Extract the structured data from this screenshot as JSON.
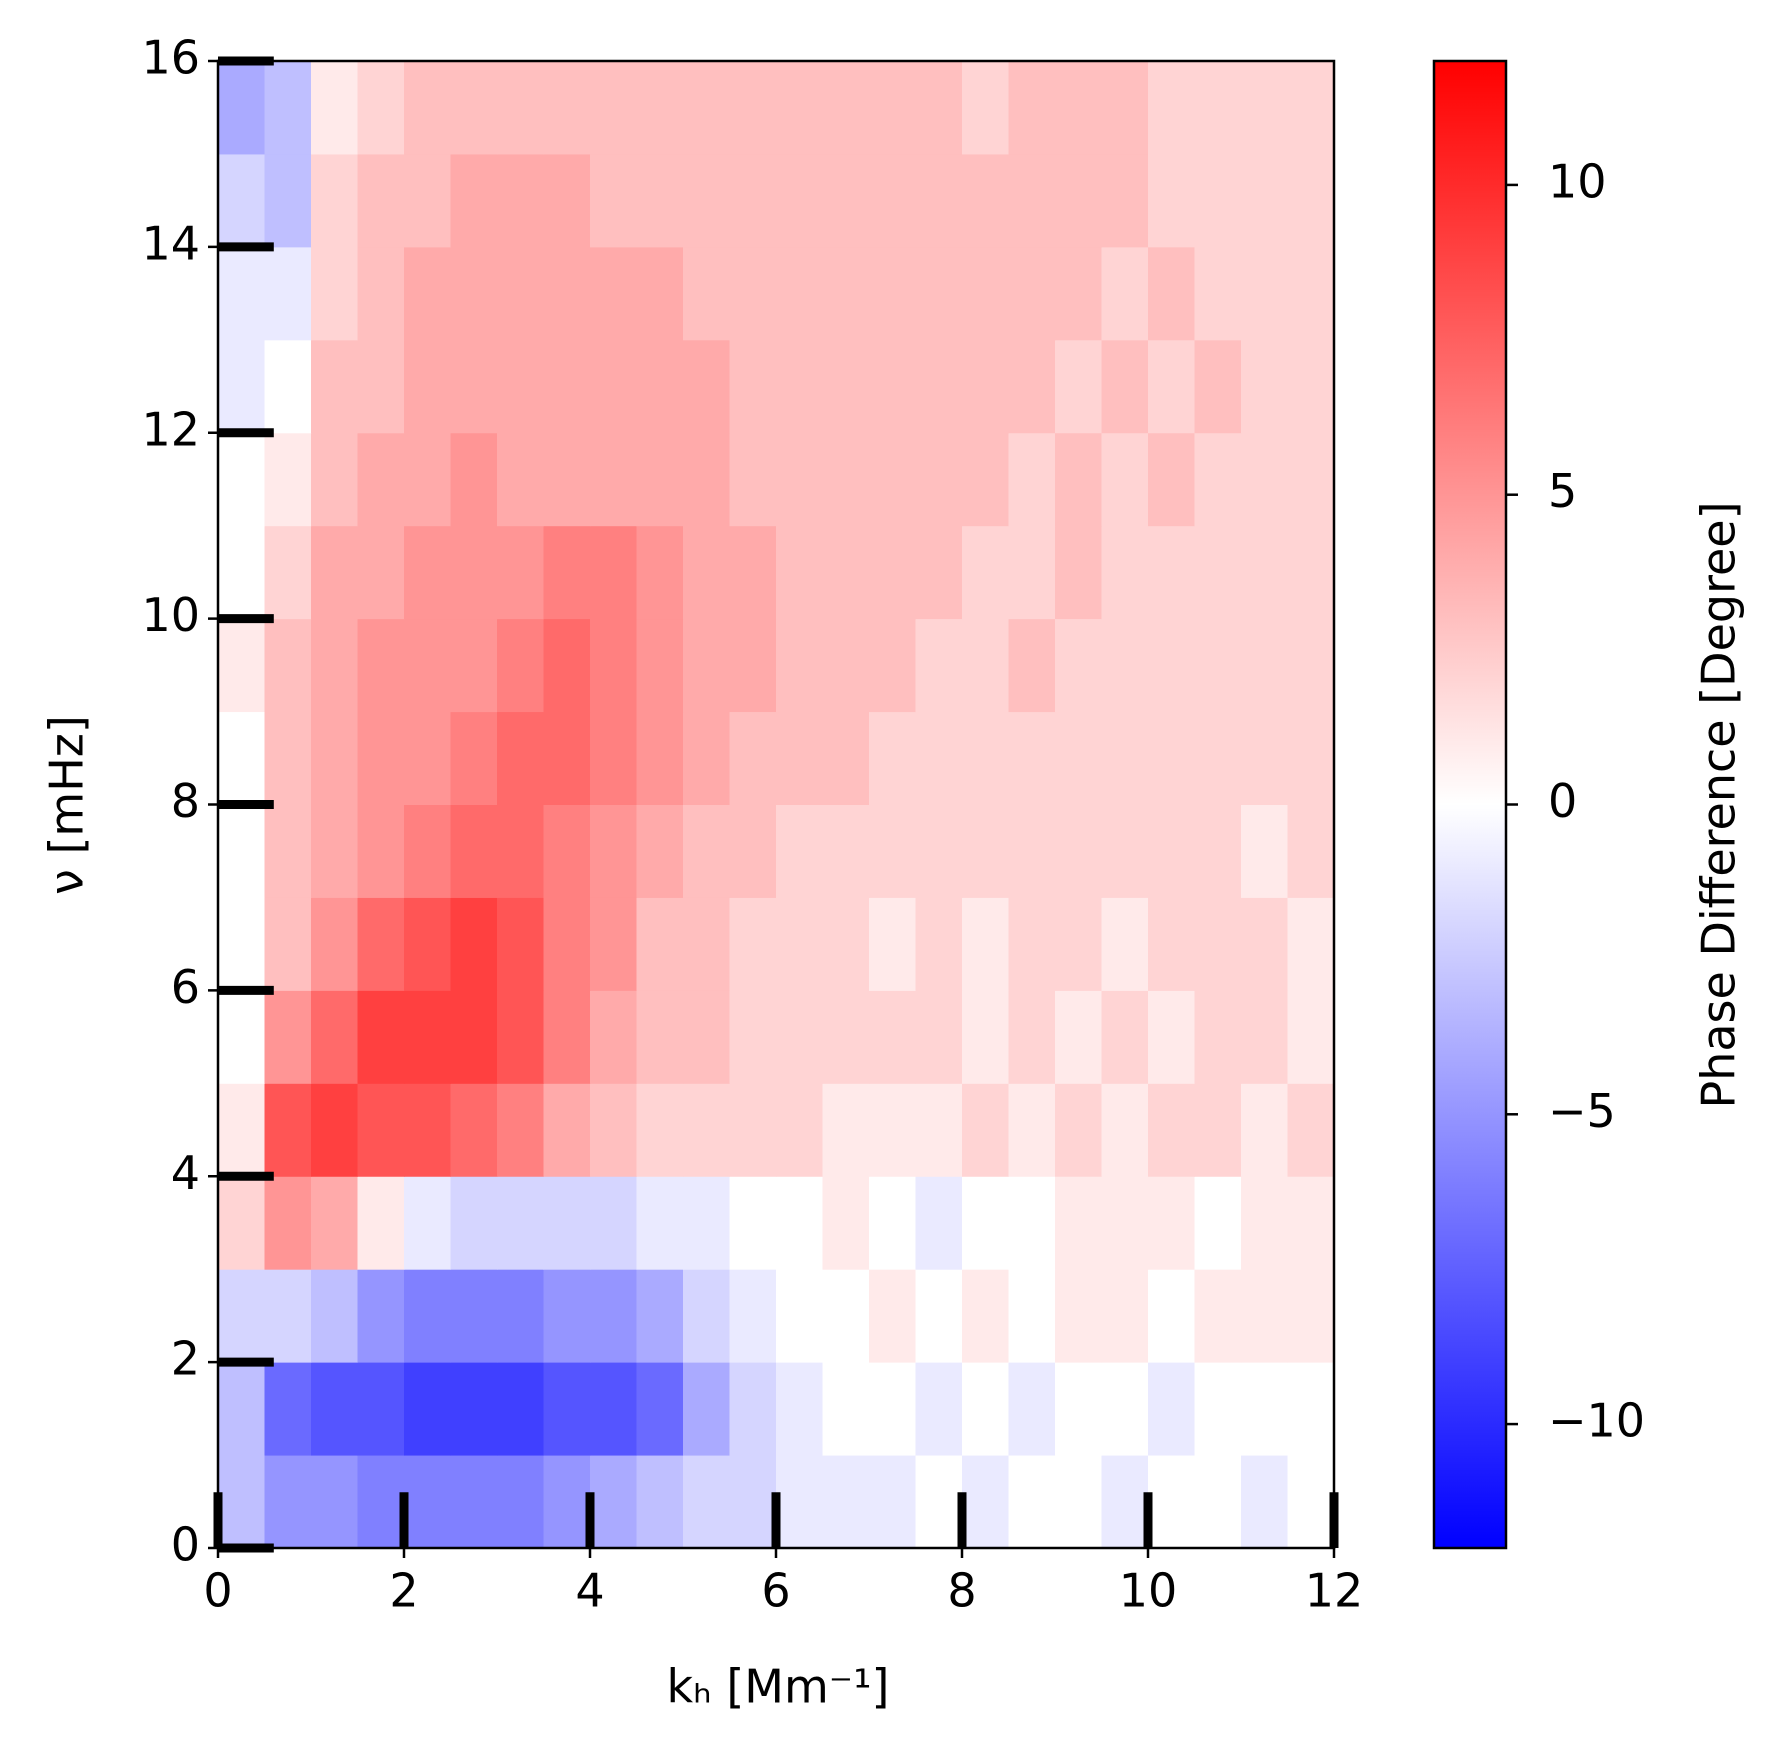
{
  "chart_data": {
    "type": "heatmap",
    "xlabel": "kₕ  [Mm⁻¹]",
    "ylabel": "ν  [mHz]",
    "colorbar_label": "Phase Difference [Degree]",
    "xlim": [
      0,
      12
    ],
    "ylim": [
      0,
      16
    ],
    "xticks": [
      0,
      2,
      4,
      6,
      8,
      10,
      12
    ],
    "yticks": [
      0,
      2,
      4,
      6,
      8,
      10,
      12,
      14,
      16
    ],
    "xbins": [
      0,
      0.5,
      1,
      1.5,
      2,
      2.5,
      3,
      3.5,
      4,
      4.5,
      5,
      5.5,
      6,
      6.5,
      7,
      7.5,
      8,
      8.5,
      9,
      9.5,
      10,
      10.5,
      11,
      11.5,
      12
    ],
    "ybins": [
      0,
      1,
      2,
      3,
      4,
      5,
      6,
      7,
      8,
      9,
      10,
      11,
      12,
      13,
      14,
      15,
      16
    ],
    "z": [
      [
        -3,
        -5,
        -5,
        -6,
        -6,
        -6,
        -6,
        -5,
        -4,
        -3,
        -2,
        -2,
        -1,
        -1,
        -1,
        0,
        -1,
        0,
        0,
        -1,
        0,
        0,
        -1,
        0
      ],
      [
        -3,
        -7,
        -8,
        -8,
        -9,
        -9,
        -9,
        -8,
        -8,
        -7,
        -4,
        -2,
        -1,
        0,
        0,
        -1,
        0,
        -1,
        0,
        0,
        -1,
        0,
        0,
        0
      ],
      [
        -2,
        -2,
        -3,
        -5,
        -6,
        -6,
        -6,
        -5,
        -5,
        -4,
        -2,
        -1,
        0,
        0,
        1,
        0,
        1,
        0,
        1,
        1,
        0,
        1,
        1,
        1
      ],
      [
        2,
        5,
        4,
        1,
        -1,
        -2,
        -2,
        -2,
        -2,
        -1,
        -1,
        0,
        0,
        1,
        0,
        -1,
        0,
        0,
        1,
        1,
        1,
        0,
        1,
        1
      ],
      [
        1,
        8,
        9,
        8,
        8,
        7,
        6,
        4,
        3,
        2,
        2,
        2,
        2,
        1,
        1,
        1,
        2,
        1,
        2,
        1,
        2,
        2,
        1,
        2
      ],
      [
        0,
        5,
        7,
        9,
        9,
        9,
        8,
        6,
        4,
        3,
        3,
        2,
        2,
        2,
        2,
        2,
        1,
        2,
        1,
        2,
        1,
        2,
        2,
        1
      ],
      [
        0,
        3,
        5,
        7,
        8,
        9,
        8,
        6,
        5,
        3,
        3,
        2,
        2,
        2,
        1,
        2,
        1,
        2,
        2,
        1,
        2,
        2,
        2,
        1
      ],
      [
        0,
        3,
        4,
        5,
        6,
        7,
        7,
        6,
        5,
        4,
        3,
        3,
        2,
        2,
        2,
        2,
        2,
        2,
        2,
        2,
        2,
        2,
        1,
        2
      ],
      [
        0,
        3,
        4,
        5,
        5,
        6,
        7,
        7,
        6,
        5,
        4,
        3,
        3,
        3,
        2,
        2,
        2,
        2,
        2,
        2,
        2,
        2,
        2,
        2
      ],
      [
        1,
        3,
        4,
        5,
        5,
        5,
        6,
        7,
        6,
        5,
        4,
        4,
        3,
        3,
        3,
        2,
        2,
        3,
        2,
        2,
        2,
        2,
        2,
        2
      ],
      [
        0,
        2,
        4,
        4,
        5,
        5,
        5,
        6,
        6,
        5,
        4,
        4,
        3,
        3,
        3,
        3,
        2,
        2,
        3,
        2,
        2,
        2,
        2,
        2
      ],
      [
        0,
        1,
        3,
        4,
        4,
        5,
        4,
        4,
        4,
        4,
        4,
        3,
        3,
        3,
        3,
        3,
        3,
        2,
        3,
        2,
        3,
        2,
        2,
        2
      ],
      [
        -1,
        0,
        3,
        3,
        4,
        4,
        4,
        4,
        4,
        4,
        4,
        3,
        3,
        3,
        3,
        3,
        3,
        3,
        2,
        3,
        2,
        3,
        2,
        2
      ],
      [
        -1,
        -1,
        2,
        3,
        4,
        4,
        4,
        4,
        4,
        4,
        3,
        3,
        3,
        3,
        3,
        3,
        3,
        3,
        3,
        2,
        3,
        2,
        2,
        2
      ],
      [
        -2,
        -3,
        2,
        3,
        3,
        4,
        4,
        4,
        3,
        3,
        3,
        3,
        3,
        3,
        3,
        3,
        3,
        3,
        3,
        3,
        2,
        2,
        2,
        2
      ],
      [
        -4,
        -3,
        1,
        2,
        3,
        3,
        3,
        3,
        3,
        3,
        3,
        3,
        3,
        3,
        3,
        3,
        2,
        3,
        3,
        3,
        2,
        2,
        2,
        2
      ]
    ],
    "colormap": [
      "#0000ff",
      "#ffffff",
      "#ff0000"
    ],
    "zlim": [
      -12,
      12
    ],
    "zticks": [
      {
        "value": -10,
        "label": "−10"
      },
      {
        "value": -5,
        "label": "−5"
      },
      0,
      5,
      10
    ]
  }
}
